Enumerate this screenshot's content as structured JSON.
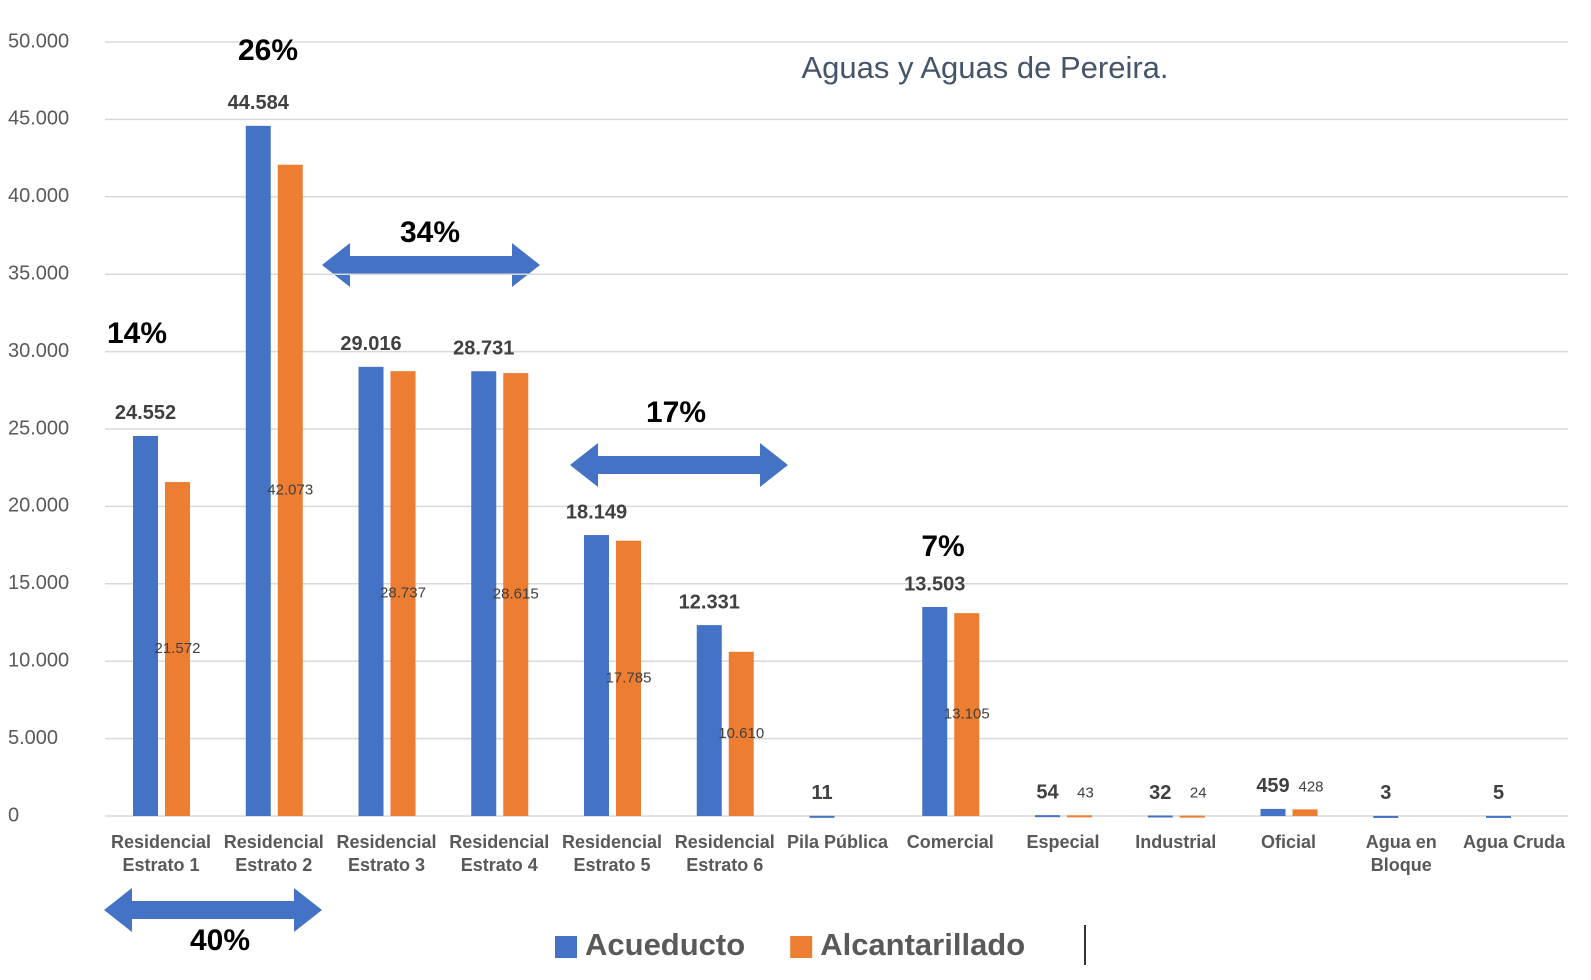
{
  "chart_data": {
    "type": "bar",
    "title": "Aguas y Aguas de Pereira.",
    "categories": [
      "Residencial\nEstrato 1",
      "Residencial\nEstrato 2",
      "Residencial\nEstrato 3",
      "Residencial\nEstrato 4",
      "Residencial\nEstrato 5",
      "Residencial\nEstrato 6",
      "Pila Pública",
      "Comercial",
      "Especial",
      "Industrial",
      "Oficial",
      "Agua en\nBloque",
      "Agua Cruda"
    ],
    "series": [
      {
        "name": "Acueducto",
        "color": "#4472c4",
        "values": [
          24552,
          44584,
          29016,
          28731,
          18149,
          12331,
          11,
          13503,
          54,
          32,
          459,
          3,
          5
        ],
        "value_labels": [
          "24.552",
          "44.584",
          "29.016",
          "28.731",
          "18.149",
          "12.331",
          "11",
          "13.503",
          "54",
          "32",
          "459",
          "3",
          "5"
        ]
      },
      {
        "name": "Alcantarillado",
        "color": "#ed7d31",
        "values": [
          21572,
          42073,
          28737,
          28615,
          17785,
          10610,
          null,
          13105,
          43,
          24,
          428,
          null,
          null
        ],
        "value_labels": [
          "21.572",
          "42.073",
          "28.737",
          "28.615",
          "17.785",
          "10.610",
          null,
          "13.105",
          "43",
          "24",
          "428",
          null,
          null
        ]
      }
    ],
    "ylim": [
      0,
      50000
    ],
    "yticks": [
      0,
      {
        "value": 5000,
        "label": "5.000"
      },
      {
        "value": 10000,
        "label": "10.000"
      },
      {
        "value": 15000,
        "label": "15.000"
      },
      {
        "value": 20000,
        "label": "20.000"
      },
      {
        "value": 25000,
        "label": "25.000"
      },
      {
        "value": 30000,
        "label": "30.000"
      },
      {
        "value": 35000,
        "label": "35.000"
      },
      {
        "value": 40000,
        "label": "40.000"
      },
      {
        "value": 45000,
        "label": "45.000"
      },
      {
        "value": 50000,
        "label": "50.000"
      }
    ],
    "grid": true,
    "legend": "bottom",
    "annotations": [
      "14%",
      "26%",
      "34%",
      "17%",
      "7%",
      "40%"
    ]
  }
}
